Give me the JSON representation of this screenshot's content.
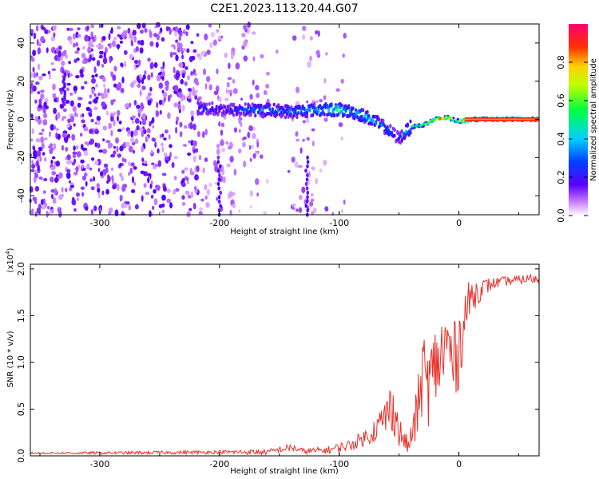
{
  "title": "C2E1.2023.113.20.44.G07",
  "colors": {
    "snr_line": "#e8302a",
    "axis": "#000000",
    "spec_low": "#9a00ff",
    "spec_high": "#ff0030"
  },
  "chart_data": [
    {
      "type": "heatmap",
      "xlabel": "Height of straight line (km)",
      "ylabel": "Frequency (Hz)",
      "xlim": [
        -358,
        67
      ],
      "ylim": [
        -50,
        50
      ],
      "x_ticks": [
        -300,
        -200,
        -100,
        0
      ],
      "x_tick_labels": [
        "-300",
        "-200",
        "-100",
        "0"
      ],
      "y_ticks": [
        -40,
        -20,
        0,
        20,
        40
      ],
      "y_tick_labels": [
        "-40",
        "-20",
        "0",
        "20",
        "40"
      ],
      "colorbar": {
        "label": "Normalized spectral amplitude",
        "range": [
          0,
          1
        ],
        "ticks": [
          0,
          0.2,
          0.4,
          0.6,
          0.8
        ],
        "tick_labels": [
          "0.0",
          "0.2",
          "0.4",
          "0.6",
          "0.8"
        ]
      },
      "ridge": {
        "height": [
          -218,
          -200,
          -180,
          -160,
          -140,
          -120,
          -100,
          -90,
          -80,
          -70,
          -60,
          -50,
          -45,
          -40,
          -30,
          -20,
          -10,
          -5,
          0,
          10,
          20,
          40,
          60,
          67
        ],
        "frequency": [
          6,
          5,
          5,
          5,
          4,
          5,
          5,
          4,
          2,
          -1,
          -5,
          -10,
          -7,
          -4,
          -3,
          0,
          1,
          0,
          -1,
          0,
          0,
          0,
          0,
          0
        ],
        "amplitude": [
          0.25,
          0.2,
          0.3,
          0.35,
          0.3,
          0.4,
          0.5,
          0.35,
          0.45,
          0.35,
          0.3,
          0.2,
          0.4,
          0.5,
          0.6,
          0.75,
          0.85,
          0.65,
          0.8,
          0.92,
          0.92,
          0.92,
          0.9,
          0.6
        ]
      },
      "streaks": [
        {
          "height": -330,
          "frequency": [
            8,
            25
          ]
        },
        {
          "height": -200,
          "frequency": [
            -50,
            -20
          ]
        },
        {
          "height": -127,
          "frequency": [
            -50,
            -20
          ]
        }
      ],
      "grid": false
    },
    {
      "type": "line",
      "xlabel": "Height of straight line (km)",
      "ylabel": "SNR (10 * v/v)",
      "y_multiplier_label": "(x10",
      "y_multiplier_exp": "4",
      "xlim": [
        -358,
        67
      ],
      "ylim": [
        0,
        2.05
      ],
      "x_ticks": [
        -300,
        -200,
        -100,
        0
      ],
      "x_tick_labels": [
        "-300",
        "-200",
        "-100",
        "0"
      ],
      "y_ticks": [
        0,
        0.5,
        1.0,
        1.5,
        2.0
      ],
      "y_tick_labels": [
        "0.0",
        "0.5",
        "1.0",
        "1.5",
        "2.0"
      ],
      "series": [
        {
          "x": [
            -358,
            -300,
            -200,
            -160,
            -140,
            -130,
            -110,
            -90,
            -75,
            -65,
            -55,
            -50,
            -42,
            -35,
            -30,
            -25,
            -20,
            -15,
            -10,
            -5,
            0,
            5,
            10,
            20,
            30,
            40,
            50,
            60,
            67
          ],
          "y": [
            0.03,
            0.03,
            0.04,
            0.04,
            0.09,
            0.05,
            0.06,
            0.12,
            0.22,
            0.35,
            0.55,
            0.25,
            0.1,
            0.45,
            0.9,
            0.75,
            0.95,
            1.05,
            1.2,
            1.0,
            1.15,
            1.5,
            1.7,
            1.8,
            1.85,
            1.87,
            1.88,
            1.9,
            1.88
          ],
          "noise": [
            0.01,
            0.015,
            0.02,
            0.03,
            0.04,
            0.03,
            0.04,
            0.06,
            0.1,
            0.18,
            0.3,
            0.18,
            0.08,
            0.3,
            0.45,
            0.45,
            0.45,
            0.45,
            0.5,
            0.4,
            0.45,
            0.3,
            0.2,
            0.1,
            0.06,
            0.05,
            0.05,
            0.05,
            0.06
          ]
        }
      ],
      "grid": false
    }
  ]
}
